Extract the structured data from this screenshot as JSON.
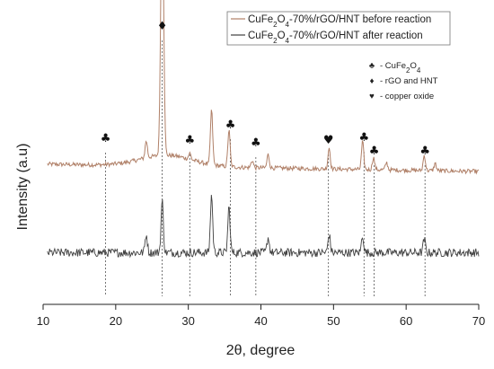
{
  "chart_data": {
    "type": "line",
    "xlabel": "2θ, degree",
    "ylabel": "Intensity (a.u)",
    "xlim": [
      10,
      70
    ],
    "x_ticks": [
      10,
      20,
      30,
      40,
      50,
      60,
      70
    ],
    "grid": false,
    "legend_position": "top-right",
    "series": [
      {
        "name": "CuFe2O4-70%/rGO/HNT before reaction",
        "name_parts": [
          "CuFe",
          "2",
          "O",
          "4",
          "-70%/rGO/HNT before reaction"
        ],
        "color": "#b08068",
        "baseline": 0.9,
        "noise": 0.035,
        "peaks": [
          {
            "x": 24.2,
            "h": 0.28
          },
          {
            "x": 26.4,
            "h": 4.35
          },
          {
            "x": 30.2,
            "h": 0.1
          },
          {
            "x": 33.2,
            "h": 0.9
          },
          {
            "x": 35.6,
            "h": 0.6
          },
          {
            "x": 38.8,
            "h": 0.12
          },
          {
            "x": 41.0,
            "h": 0.22
          },
          {
            "x": 49.4,
            "h": 0.35
          },
          {
            "x": 54.0,
            "h": 0.45
          },
          {
            "x": 55.5,
            "h": 0.2
          },
          {
            "x": 57.3,
            "h": 0.12
          },
          {
            "x": 62.5,
            "h": 0.25
          },
          {
            "x": 64.0,
            "h": 0.12
          }
        ]
      },
      {
        "name": "CuFe2O4-70%/rGO/HNT after reaction",
        "name_parts": [
          "CuFe",
          "2",
          "O",
          "4",
          "-70%/rGO/HNT after reaction"
        ],
        "color": "#404040",
        "baseline": -0.55,
        "noise": 0.07,
        "peaks": [
          {
            "x": 24.2,
            "h": 0.3
          },
          {
            "x": 26.4,
            "h": 0.85
          },
          {
            "x": 33.2,
            "h": 0.95
          },
          {
            "x": 35.6,
            "h": 0.75
          },
          {
            "x": 41.0,
            "h": 0.25
          },
          {
            "x": 49.4,
            "h": 0.3
          },
          {
            "x": 54.0,
            "h": 0.28
          },
          {
            "x": 62.5,
            "h": 0.22
          }
        ]
      }
    ],
    "marker_key": [
      {
        "symbol": "♣",
        "parts": [
          "- CuFe",
          "2",
          "O",
          "4"
        ]
      },
      {
        "symbol": "♦",
        "parts": [
          "- rGO and HNT"
        ]
      },
      {
        "symbol": "♥",
        "parts": [
          "- copper oxide"
        ]
      }
    ],
    "annotations": [
      {
        "symbol": "♣",
        "x": 18.6
      },
      {
        "symbol": "♦",
        "x": 26.4
      },
      {
        "symbol": "♣",
        "x": 30.2
      },
      {
        "symbol": "♣",
        "x": 35.8
      },
      {
        "symbol": "♣",
        "x": 39.3
      },
      {
        "symbol": "♥",
        "x": 49.3
      },
      {
        "symbol": "♣",
        "x": 54.2
      },
      {
        "symbol": "♣",
        "x": 55.6
      },
      {
        "symbol": "♣",
        "x": 62.6
      }
    ]
  }
}
